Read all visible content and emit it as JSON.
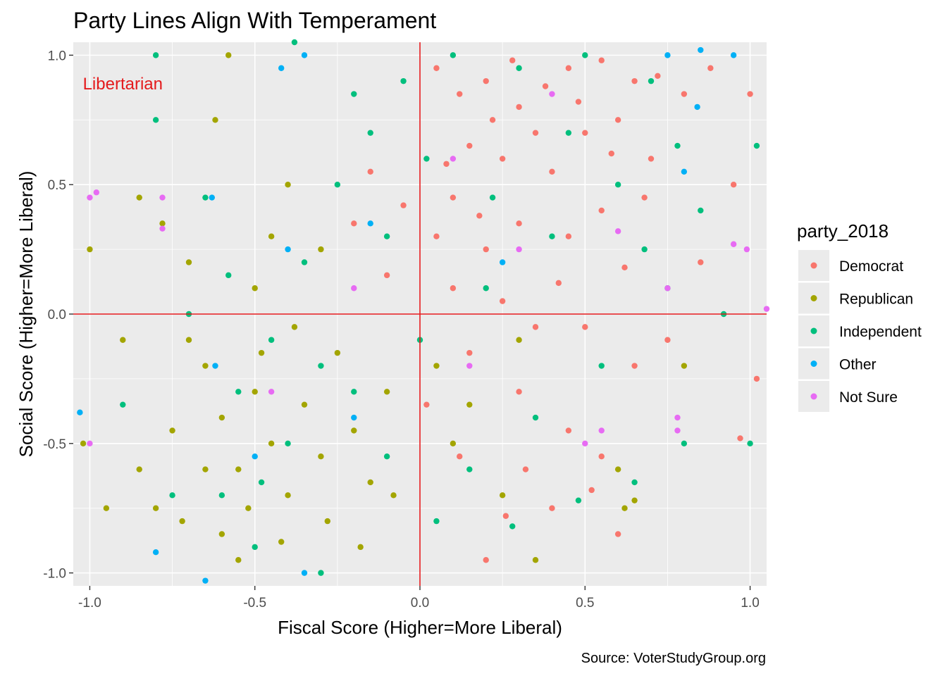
{
  "chart_data": {
    "type": "scatter",
    "title": "Party Lines Align With Temperament",
    "xlabel": "Fiscal Score (Higher=More Liberal)",
    "ylabel": "Social Score (Higher=More Liberal)",
    "caption": "Source: VoterStudyGroup.org",
    "xlim": [
      -1.05,
      1.05
    ],
    "ylim": [
      -1.05,
      1.05
    ],
    "x_ticks": [
      -1.0,
      -0.5,
      0.0,
      0.5,
      1.0
    ],
    "x_tick_labels": [
      "-1.0",
      "-0.5",
      "0.0",
      "0.5",
      "1.0"
    ],
    "y_ticks": [
      -1.0,
      -0.5,
      0.0,
      0.5,
      1.0
    ],
    "y_tick_labels": [
      "-1.0",
      "-0.5",
      "0.0",
      "0.5",
      "1.0"
    ],
    "grid": true,
    "reference_lines": {
      "x": 0,
      "y": 0,
      "color": "#E41A1C"
    },
    "annotation": {
      "text": "Libertarian",
      "x": -0.9,
      "y": 0.89,
      "color": "#E41A1C"
    },
    "legend": {
      "title": "party_2018",
      "placement": "right"
    },
    "series": [
      {
        "name": "Democrat",
        "color": "#F8766D",
        "points": [
          [
            0.05,
            0.95
          ],
          [
            0.12,
            0.85
          ],
          [
            0.2,
            0.9
          ],
          [
            0.3,
            0.8
          ],
          [
            0.45,
            0.95
          ],
          [
            0.55,
            0.98
          ],
          [
            0.65,
            0.9
          ],
          [
            0.35,
            0.7
          ],
          [
            0.25,
            0.6
          ],
          [
            0.15,
            0.65
          ],
          [
            0.4,
            0.55
          ],
          [
            0.5,
            0.7
          ],
          [
            0.6,
            0.75
          ],
          [
            0.1,
            0.45
          ],
          [
            0.3,
            0.35
          ],
          [
            0.2,
            0.25
          ],
          [
            0.45,
            0.3
          ],
          [
            0.55,
            0.4
          ],
          [
            0.7,
            0.6
          ],
          [
            0.8,
            0.85
          ],
          [
            0.05,
            0.3
          ],
          [
            0.1,
            0.1
          ],
          [
            0.25,
            0.05
          ],
          [
            0.35,
            -0.05
          ],
          [
            0.15,
            -0.15
          ],
          [
            0.3,
            -0.3
          ],
          [
            0.45,
            -0.45
          ],
          [
            0.55,
            -0.55
          ],
          [
            0.4,
            -0.75
          ],
          [
            0.6,
            -0.85
          ],
          [
            0.2,
            -0.95
          ],
          [
            0.75,
            -0.1
          ],
          [
            0.85,
            0.2
          ],
          [
            0.95,
            0.5
          ],
          [
            1.0,
            0.85
          ],
          [
            1.02,
            -0.25
          ],
          [
            0.97,
            -0.48
          ],
          [
            0.65,
            -0.2
          ],
          [
            0.5,
            -0.05
          ],
          [
            0.22,
            0.75
          ],
          [
            0.38,
            0.88
          ],
          [
            0.48,
            0.82
          ],
          [
            0.28,
            0.98
          ],
          [
            0.58,
            0.62
          ],
          [
            0.68,
            0.45
          ],
          [
            0.08,
            0.58
          ],
          [
            -0.05,
            0.42
          ],
          [
            -0.1,
            0.15
          ],
          [
            -0.15,
            0.55
          ],
          [
            0.02,
            -0.35
          ],
          [
            0.12,
            -0.55
          ],
          [
            0.32,
            -0.6
          ],
          [
            0.42,
            0.12
          ],
          [
            0.62,
            0.18
          ],
          [
            0.18,
            0.38
          ],
          [
            0.72,
            0.92
          ],
          [
            0.88,
            0.95
          ],
          [
            -0.2,
            0.35
          ],
          [
            0.26,
            -0.78
          ],
          [
            0.52,
            -0.68
          ]
        ]
      },
      {
        "name": "Republican",
        "color": "#A3A500",
        "points": [
          [
            -0.6,
            -0.4
          ],
          [
            -0.55,
            -0.6
          ],
          [
            -0.5,
            -0.3
          ],
          [
            -0.65,
            -0.2
          ],
          [
            -0.45,
            -0.5
          ],
          [
            -0.4,
            -0.7
          ],
          [
            -0.35,
            -0.35
          ],
          [
            -0.3,
            -0.55
          ],
          [
            -0.6,
            -0.85
          ],
          [
            -0.55,
            -0.95
          ],
          [
            -0.7,
            -0.1
          ],
          [
            -0.75,
            -0.45
          ],
          [
            -0.8,
            -0.75
          ],
          [
            -0.85,
            0.45
          ],
          [
            -0.78,
            0.35
          ],
          [
            -0.7,
            0.2
          ],
          [
            -0.5,
            0.1
          ],
          [
            -0.45,
            0.3
          ],
          [
            -0.25,
            -0.15
          ],
          [
            -0.2,
            -0.45
          ],
          [
            -0.15,
            -0.65
          ],
          [
            -0.1,
            -0.3
          ],
          [
            0.05,
            -0.2
          ],
          [
            0.1,
            -0.5
          ],
          [
            0.25,
            -0.7
          ],
          [
            0.35,
            -0.95
          ],
          [
            0.6,
            -0.6
          ],
          [
            0.8,
            -0.2
          ],
          [
            -1.0,
            0.25
          ],
          [
            -1.02,
            -0.5
          ],
          [
            -0.95,
            -0.75
          ],
          [
            -0.58,
            1.0
          ],
          [
            -0.62,
            0.75
          ],
          [
            -0.4,
            0.5
          ],
          [
            -0.3,
            0.25
          ],
          [
            -0.65,
            -0.6
          ],
          [
            -0.52,
            -0.75
          ],
          [
            -0.48,
            -0.15
          ],
          [
            -0.38,
            -0.05
          ],
          [
            -0.28,
            -0.8
          ],
          [
            -0.18,
            -0.9
          ],
          [
            -0.08,
            -0.7
          ],
          [
            0.15,
            -0.35
          ],
          [
            0.3,
            -0.1
          ],
          [
            -0.9,
            -0.1
          ],
          [
            -0.85,
            -0.6
          ],
          [
            -0.72,
            -0.8
          ],
          [
            0.62,
            -0.75
          ],
          [
            0.65,
            -0.72
          ],
          [
            -0.42,
            -0.88
          ]
        ]
      },
      {
        "name": "Independent",
        "color": "#00BF7D",
        "points": [
          [
            -0.55,
            -0.3
          ],
          [
            -0.45,
            -0.1
          ],
          [
            -0.35,
            0.2
          ],
          [
            -0.25,
            0.5
          ],
          [
            -0.15,
            0.7
          ],
          [
            -0.05,
            0.9
          ],
          [
            0.1,
            1.0
          ],
          [
            0.3,
            0.95
          ],
          [
            0.5,
            1.0
          ],
          [
            0.7,
            0.9
          ],
          [
            0.6,
            0.5
          ],
          [
            0.4,
            0.3
          ],
          [
            0.2,
            0.1
          ],
          [
            0.0,
            -0.1
          ],
          [
            -0.2,
            -0.3
          ],
          [
            -0.4,
            -0.5
          ],
          [
            -0.6,
            -0.7
          ],
          [
            -0.5,
            -0.9
          ],
          [
            -0.3,
            -1.0
          ],
          [
            0.15,
            -0.6
          ],
          [
            0.35,
            -0.4
          ],
          [
            0.55,
            -0.2
          ],
          [
            0.75,
            0.1
          ],
          [
            0.85,
            0.4
          ],
          [
            1.02,
            0.65
          ],
          [
            1.0,
            -0.5
          ],
          [
            0.8,
            -0.5
          ],
          [
            0.65,
            -0.65
          ],
          [
            -0.8,
            0.75
          ],
          [
            -0.8,
            1.0
          ],
          [
            -0.65,
            0.45
          ],
          [
            -0.7,
            0.0
          ],
          [
            -0.75,
            -0.7
          ],
          [
            -0.9,
            -0.35
          ],
          [
            -0.38,
            1.05
          ],
          [
            -0.2,
            0.85
          ],
          [
            0.02,
            0.6
          ],
          [
            0.22,
            0.45
          ],
          [
            0.45,
            0.7
          ],
          [
            -0.1,
            0.3
          ],
          [
            -0.3,
            -0.2
          ],
          [
            -0.1,
            -0.55
          ],
          [
            0.05,
            -0.8
          ],
          [
            0.28,
            -0.82
          ],
          [
            0.48,
            -0.72
          ],
          [
            0.68,
            0.25
          ],
          [
            0.78,
            0.65
          ],
          [
            0.92,
            0.0
          ],
          [
            -0.58,
            0.15
          ],
          [
            -0.48,
            -0.65
          ]
        ]
      },
      {
        "name": "Other",
        "color": "#00B0F6",
        "points": [
          [
            -0.42,
            0.95
          ],
          [
            -0.35,
            1.0
          ],
          [
            0.95,
            1.0
          ],
          [
            0.75,
            1.0
          ],
          [
            0.85,
            1.02
          ],
          [
            0.8,
            0.55
          ],
          [
            0.84,
            0.8
          ],
          [
            -1.03,
            -0.38
          ],
          [
            -0.8,
            -0.92
          ],
          [
            -0.65,
            -1.03
          ],
          [
            -0.35,
            -1.0
          ],
          [
            -0.63,
            0.45
          ],
          [
            -0.15,
            0.35
          ],
          [
            0.25,
            0.2
          ],
          [
            -0.5,
            -0.55
          ],
          [
            -0.4,
            0.25
          ],
          [
            -0.2,
            -0.4
          ],
          [
            -0.62,
            -0.2
          ]
        ]
      },
      {
        "name": "Not Sure",
        "color": "#E76BF3",
        "points": [
          [
            -1.0,
            0.45
          ],
          [
            -0.98,
            0.47
          ],
          [
            -1.0,
            -0.5
          ],
          [
            -0.78,
            0.45
          ],
          [
            -0.78,
            0.33
          ],
          [
            0.95,
            0.27
          ],
          [
            0.99,
            0.25
          ],
          [
            1.05,
            0.02
          ],
          [
            0.75,
            0.1
          ],
          [
            0.78,
            -0.4
          ],
          [
            0.78,
            -0.45
          ],
          [
            0.55,
            -0.45
          ],
          [
            0.5,
            -0.5
          ],
          [
            0.3,
            0.25
          ],
          [
            0.1,
            0.6
          ],
          [
            -0.2,
            0.1
          ],
          [
            0.6,
            0.32
          ],
          [
            -0.45,
            -0.3
          ],
          [
            0.15,
            -0.2
          ],
          [
            0.4,
            0.85
          ]
        ]
      }
    ]
  }
}
